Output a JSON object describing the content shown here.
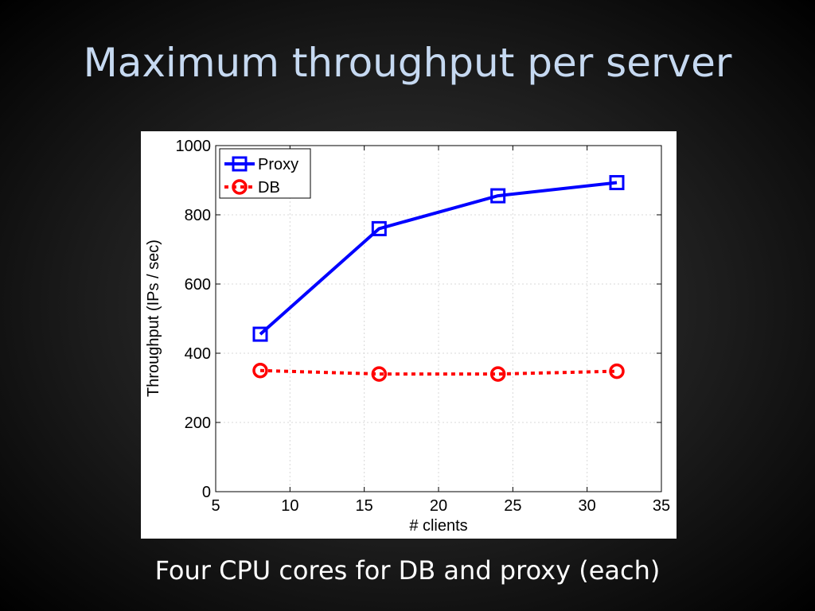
{
  "slide": {
    "title": "Maximum throughput per server",
    "caption": "Four CPU cores for DB and proxy (each)"
  },
  "chart_data": {
    "type": "line",
    "xlabel": "# clients",
    "ylabel": "Throughput (IPs / sec)",
    "xlim": [
      5,
      35
    ],
    "ylim": [
      0,
      1000
    ],
    "xticks": [
      5,
      10,
      15,
      20,
      25,
      30,
      35
    ],
    "yticks": [
      0,
      200,
      400,
      600,
      800,
      1000
    ],
    "grid": true,
    "legend_position": "top-left",
    "x": [
      8,
      16,
      24,
      32
    ],
    "series": [
      {
        "name": "Proxy",
        "values": [
          455,
          760,
          855,
          893
        ],
        "color": "#0000ff",
        "marker": "square",
        "linestyle": "solid"
      },
      {
        "name": "DB",
        "values": [
          350,
          340,
          340,
          348
        ],
        "color": "#ff0000",
        "marker": "circle",
        "linestyle": "dotted"
      }
    ]
  }
}
